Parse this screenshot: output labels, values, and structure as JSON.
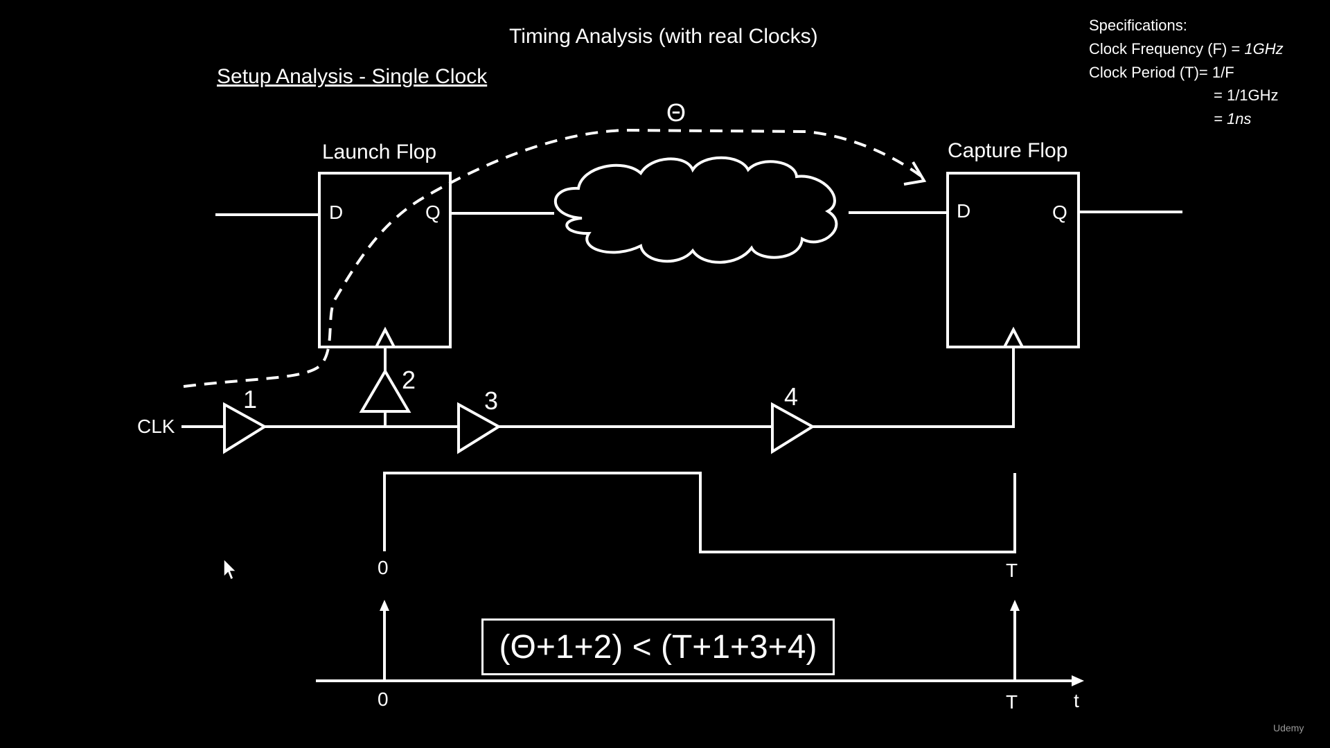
{
  "title": "Timing Analysis (with real Clocks)",
  "subtitle": "Setup Analysis - Single Clock",
  "specs": {
    "heading": "Specifications:",
    "freq_label": "Clock Frequency (F) = ",
    "freq_value": "1GHz",
    "period_label": "Clock Period (T)= 1/F",
    "period_step": "= 1/1GHz",
    "period_result": "= 1ns"
  },
  "launch_flop": {
    "label": "Launch Flop",
    "d": "D",
    "q": "Q"
  },
  "capture_flop": {
    "label": "Capture Flop",
    "d": "D",
    "q": "Q"
  },
  "clk_label": "CLK",
  "buffers": [
    "1",
    "2",
    "3",
    "4"
  ],
  "theta": "Θ",
  "waveform": {
    "start": "0",
    "end": "T"
  },
  "timeline": {
    "start": "0",
    "end": "T",
    "axis": "t"
  },
  "equation": "(Θ+1+2) < (T+1+3+4)",
  "logo": "Udemy"
}
